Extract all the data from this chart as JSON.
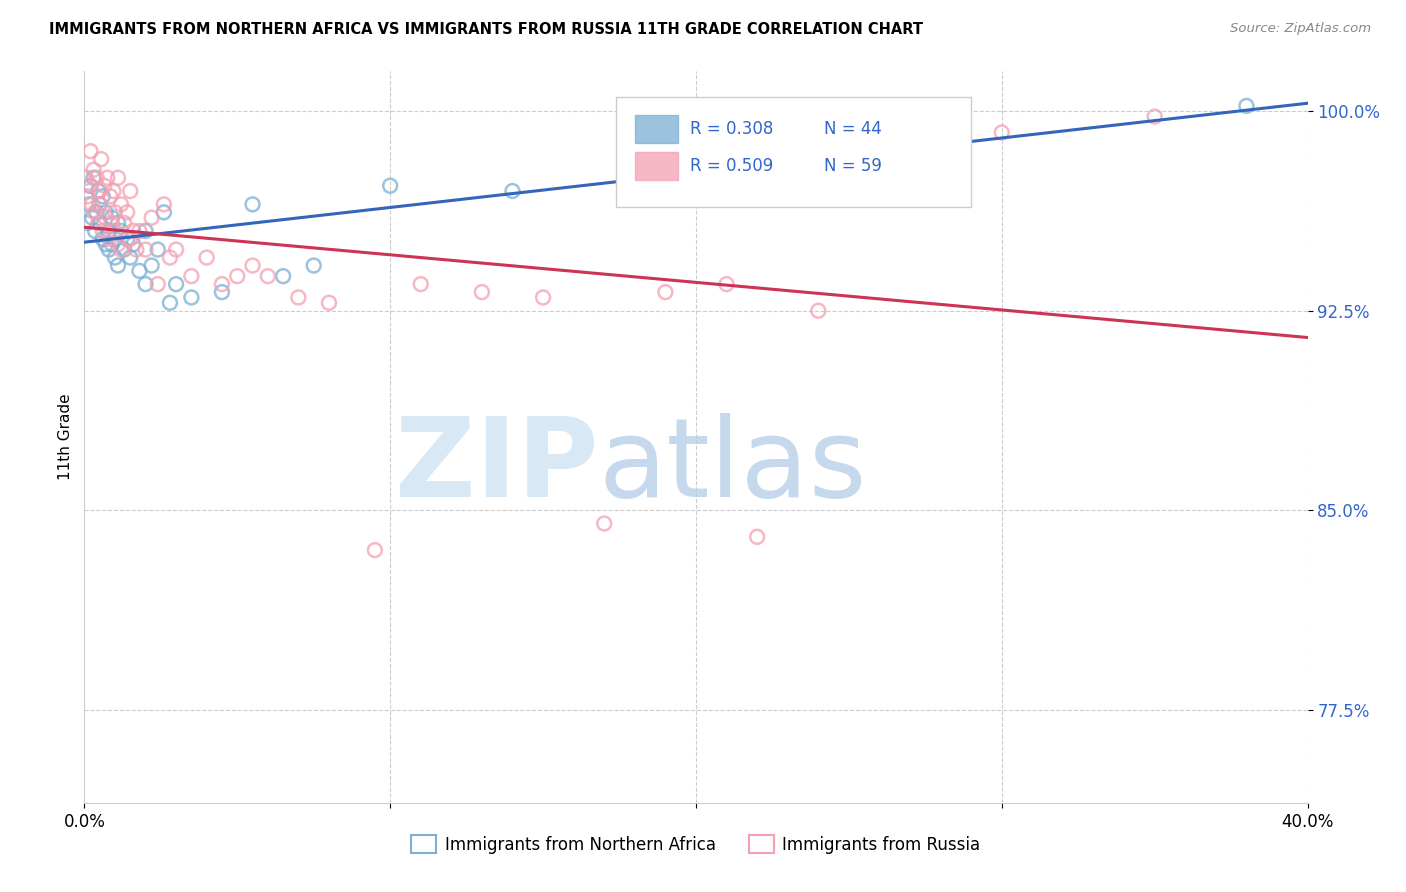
{
  "title": "IMMIGRANTS FROM NORTHERN AFRICA VS IMMIGRANTS FROM RUSSIA 11TH GRADE CORRELATION CHART",
  "source": "Source: ZipAtlas.com",
  "ylabel": "11th Grade",
  "y_ticks": [
    77.5,
    85.0,
    92.5,
    100.0
  ],
  "y_tick_labels": [
    "77.5%",
    "85.0%",
    "92.5%",
    "100.0%"
  ],
  "xlim": [
    0.0,
    40.0
  ],
  "ylim": [
    74.0,
    101.5
  ],
  "blue_color": "#7BAFD4",
  "pink_color": "#F4A0B0",
  "blue_line_color": "#3366BB",
  "pink_line_color": "#CC3355",
  "R_blue": 0.308,
  "N_blue": 44,
  "R_pink": 0.509,
  "N_pink": 59,
  "legend_label_blue": "Immigrants from Northern Africa",
  "legend_label_pink": "Immigrants from Russia",
  "blue_scatter_x": [
    0.1,
    0.15,
    0.2,
    0.25,
    0.3,
    0.35,
    0.4,
    0.45,
    0.5,
    0.5,
    0.6,
    0.6,
    0.7,
    0.7,
    0.8,
    0.8,
    0.9,
    0.9,
    1.0,
    1.0,
    1.1,
    1.1,
    1.2,
    1.3,
    1.4,
    1.5,
    1.6,
    1.8,
    2.0,
    2.0,
    2.2,
    2.4,
    2.6,
    2.8,
    3.0,
    3.5,
    4.5,
    5.5,
    6.5,
    7.5,
    10.0,
    14.0,
    20.0,
    38.0
  ],
  "blue_scatter_y": [
    95.8,
    96.5,
    97.2,
    96.0,
    97.5,
    95.5,
    96.2,
    97.0,
    95.8,
    96.5,
    95.2,
    96.8,
    95.0,
    96.2,
    94.8,
    95.5,
    95.0,
    96.0,
    94.5,
    95.2,
    95.8,
    94.2,
    95.5,
    94.8,
    95.2,
    94.5,
    95.0,
    94.0,
    95.5,
    93.5,
    94.2,
    94.8,
    96.2,
    92.8,
    93.5,
    93.0,
    93.2,
    96.5,
    93.8,
    94.2,
    97.2,
    97.0,
    100.0,
    100.2
  ],
  "pink_scatter_x": [
    0.05,
    0.1,
    0.15,
    0.2,
    0.25,
    0.3,
    0.35,
    0.4,
    0.45,
    0.5,
    0.5,
    0.55,
    0.6,
    0.65,
    0.7,
    0.75,
    0.8,
    0.85,
    0.9,
    0.95,
    1.0,
    1.0,
    1.1,
    1.1,
    1.2,
    1.2,
    1.3,
    1.4,
    1.5,
    1.5,
    1.6,
    1.7,
    1.8,
    2.0,
    2.2,
    2.4,
    2.6,
    2.8,
    3.0,
    3.5,
    4.0,
    4.5,
    5.0,
    5.5,
    6.0,
    7.0,
    8.0,
    9.5,
    11.0,
    13.0,
    15.0,
    17.0,
    19.0,
    21.0,
    22.0,
    24.0,
    27.0,
    30.0,
    35.0
  ],
  "pink_scatter_y": [
    97.5,
    96.8,
    97.2,
    98.5,
    96.5,
    97.8,
    96.2,
    97.5,
    95.8,
    97.0,
    96.5,
    98.2,
    95.5,
    97.2,
    96.0,
    97.5,
    95.2,
    96.8,
    95.8,
    97.0,
    95.5,
    96.2,
    97.5,
    95.0,
    96.5,
    94.8,
    95.8,
    96.2,
    95.2,
    97.0,
    95.5,
    94.8,
    95.5,
    94.8,
    96.0,
    93.5,
    96.5,
    94.5,
    94.8,
    93.8,
    94.5,
    93.5,
    93.8,
    94.2,
    93.8,
    93.0,
    92.8,
    83.5,
    93.5,
    93.2,
    93.0,
    84.5,
    93.2,
    93.5,
    84.0,
    92.5,
    97.2,
    99.2,
    99.8
  ]
}
